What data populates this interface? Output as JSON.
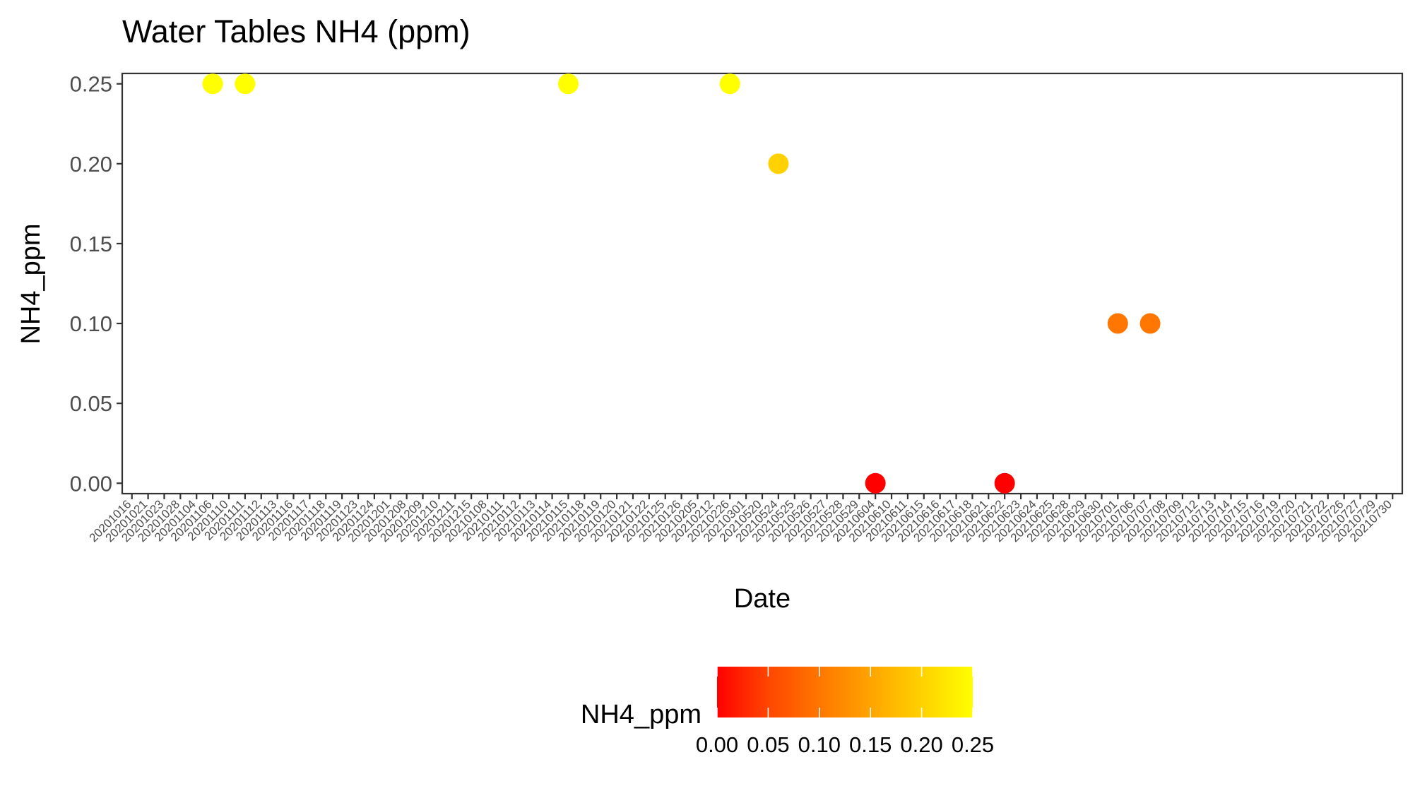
{
  "chart_data": {
    "type": "scatter",
    "title": "Water Tables NH4 (ppm)",
    "xlabel": "Date",
    "ylabel": "NH4_ppm",
    "x_axis_type": "categorical",
    "categories": [
      "20201016",
      "20201021",
      "20201023",
      "20201028",
      "20201104",
      "20201106",
      "20201110",
      "20201111",
      "20201112",
      "20201113",
      "20201116",
      "20201117",
      "20201118",
      "20201119",
      "20201123",
      "20201124",
      "20201201",
      "20201208",
      "20201209",
      "20201210",
      "20201211",
      "20201215",
      "20210108",
      "20210111",
      "20210112",
      "20210113",
      "20210114",
      "20210115",
      "20210118",
      "20210119",
      "20210120",
      "20210121",
      "20210122",
      "20210125",
      "20210126",
      "20210205",
      "20210212",
      "20210226",
      "20210301",
      "20210520",
      "20210524",
      "20210525",
      "20210526",
      "20210527",
      "20210528",
      "20210529",
      "20210604",
      "20210610",
      "20210611",
      "20210615",
      "20210616",
      "20210617",
      "20210618",
      "20210621",
      "20210622",
      "20210623",
      "20210624",
      "20210625",
      "20210628",
      "20210629",
      "20210630",
      "20210701",
      "20210706",
      "20210707",
      "20210708",
      "20210709",
      "20210712",
      "20210713",
      "20210714",
      "20210715",
      "20210716",
      "20210719",
      "20210720",
      "20210721",
      "20210722",
      "20210726",
      "20210727",
      "20210729",
      "20210730"
    ],
    "points": [
      {
        "x": "20201106",
        "y": 0.25
      },
      {
        "x": "20201111",
        "y": 0.25
      },
      {
        "x": "20210115",
        "y": 0.25
      },
      {
        "x": "20210226",
        "y": 0.25
      },
      {
        "x": "20210524",
        "y": 0.2
      },
      {
        "x": "20210604",
        "y": 0.0
      },
      {
        "x": "20210622",
        "y": 0.0
      },
      {
        "x": "20210701",
        "y": 0.1
      },
      {
        "x": "20210707",
        "y": 0.1
      }
    ],
    "yticks": [
      "0.00",
      "0.05",
      "0.10",
      "0.15",
      "0.20",
      "0.25"
    ],
    "ylim": [
      -0.0065,
      0.2565
    ],
    "grid": false,
    "color_scale": {
      "low": "#ff0000",
      "high": "#ffff00",
      "domain": [
        0,
        0.25
      ]
    },
    "legend": {
      "title": "NH4_ppm",
      "position": "bottom",
      "ticks": [
        "0.00",
        "0.05",
        "0.10",
        "0.15",
        "0.20",
        "0.25"
      ]
    }
  }
}
